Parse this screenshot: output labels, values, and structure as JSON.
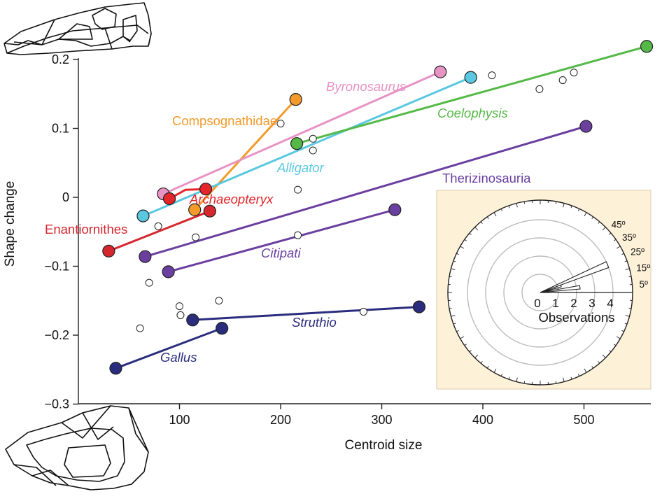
{
  "chart_data": {
    "type": "scatter",
    "xlabel": "Centroid size",
    "ylabel": "Shape change",
    "xlim": [
      0,
      565
    ],
    "ylim": [
      -0.3,
      0.22
    ],
    "x_ticks": [
      100,
      200,
      300,
      400,
      500
    ],
    "x_tick_labels": [
      "100",
      "200",
      "300",
      "400",
      "500"
    ],
    "y_ticks": [
      0.2,
      0.1,
      0,
      -0.1,
      -0.2,
      -0.3
    ],
    "y_tick_labels": [
      "0.2",
      "0.1",
      "0",
      "−0.1",
      "−0.2",
      "−0.3"
    ],
    "grid": false,
    "series": [
      {
        "name": "Compsognathidae",
        "color": "#f39a2b",
        "label_style": "normal",
        "line": [
          [
            115,
            -0.018
          ],
          [
            215,
            0.142
          ]
        ],
        "points": [
          [
            115,
            -0.018
          ],
          [
            215,
            0.142
          ]
        ]
      },
      {
        "name": "Byronosaurus",
        "color": "#e793c4",
        "label_style": "italic",
        "line": [
          [
            84,
            0.005
          ],
          [
            358,
            0.182
          ]
        ],
        "points": [
          [
            84,
            0.005
          ],
          [
            358,
            0.182
          ]
        ]
      },
      {
        "name": "Alligator",
        "color": "#5ac8e0",
        "label_style": "italic",
        "line": [
          [
            64,
            -0.027
          ],
          [
            388,
            0.174
          ]
        ],
        "points": [
          [
            64,
            -0.027
          ],
          [
            388,
            0.174
          ]
        ]
      },
      {
        "name": "Coelophysis",
        "color": "#55b947",
        "label_style": "italic",
        "line": [
          [
            216,
            0.078
          ],
          [
            562,
            0.219
          ]
        ],
        "points": [
          [
            216,
            0.078
          ],
          [
            562,
            0.219
          ]
        ]
      },
      {
        "name": "Therizinosauria",
        "color": "#6a3fa0",
        "label_style": "normal",
        "line": [
          [
            66,
            -0.086
          ],
          [
            502,
            0.103
          ]
        ],
        "points": [
          [
            66,
            -0.086
          ],
          [
            502,
            0.103
          ]
        ]
      },
      {
        "name": "Citipati",
        "color": "#6a3fa0",
        "label_style": "italic",
        "line": [
          [
            89,
            -0.108
          ],
          [
            313,
            -0.018
          ]
        ],
        "points": [
          [
            89,
            -0.108
          ],
          [
            313,
            -0.018
          ]
        ]
      },
      {
        "name": "Archaeopteryx",
        "color": "#e4262a",
        "label_style": "italic",
        "line": [
          [
            90,
            -0.002
          ],
          [
            106,
            0.011
          ],
          [
            126,
            0.012
          ]
        ],
        "points": [
          [
            90,
            -0.002
          ],
          [
            126,
            0.012
          ]
        ]
      },
      {
        "name": "Enantiornithes",
        "color": "#d4272e",
        "label_style": "normal",
        "line": [
          [
            30,
            -0.078
          ],
          [
            130,
            -0.02
          ]
        ],
        "points": [
          [
            30,
            -0.078
          ],
          [
            130,
            -0.02
          ]
        ]
      },
      {
        "name": "Struthio",
        "color": "#2a2d7e",
        "label_style": "italic",
        "line": [
          [
            113,
            -0.178
          ],
          [
            337,
            -0.159
          ]
        ],
        "points": [
          [
            113,
            -0.178
          ],
          [
            337,
            -0.159
          ]
        ]
      },
      {
        "name": "Gallus",
        "color": "#2a2d7e",
        "label_style": "italic",
        "line": [
          [
            37,
            -0.248
          ],
          [
            142,
            -0.19
          ]
        ],
        "points": [
          [
            37,
            -0.248
          ],
          [
            142,
            -0.19
          ]
        ]
      }
    ],
    "open_points": [
      [
        200,
        0.107
      ],
      [
        232,
        0.085
      ],
      [
        232,
        0.068
      ],
      [
        217,
        0.011
      ],
      [
        409,
        0.177
      ],
      [
        456,
        0.157
      ],
      [
        479,
        0.17
      ],
      [
        490,
        0.181
      ],
      [
        79,
        -0.042
      ],
      [
        116,
        -0.058
      ],
      [
        217,
        -0.055
      ],
      [
        70,
        -0.124
      ],
      [
        100,
        -0.158
      ],
      [
        101,
        -0.171
      ],
      [
        139,
        -0.15
      ],
      [
        61,
        -0.19
      ],
      [
        282,
        -0.166
      ]
    ],
    "inset": {
      "type": "polar-histogram",
      "xlabel": "Observations",
      "r_ticks": [
        "0",
        "1",
        "2",
        "3",
        "4"
      ],
      "angle_labels": [
        "45º",
        "35º",
        "25º",
        "15º",
        "5º"
      ],
      "bins": [
        {
          "angle_from": 0,
          "angle_to": 5,
          "count": 0
        },
        {
          "angle_from": 5,
          "angle_to": 10,
          "count": 2.2
        },
        {
          "angle_from": 10,
          "angle_to": 15,
          "count": 1.0
        },
        {
          "angle_from": 15,
          "angle_to": 20,
          "count": 1.2
        },
        {
          "angle_from": 20,
          "angle_to": 25,
          "count": 4.0
        }
      ],
      "background": "#fdf1d8"
    }
  }
}
